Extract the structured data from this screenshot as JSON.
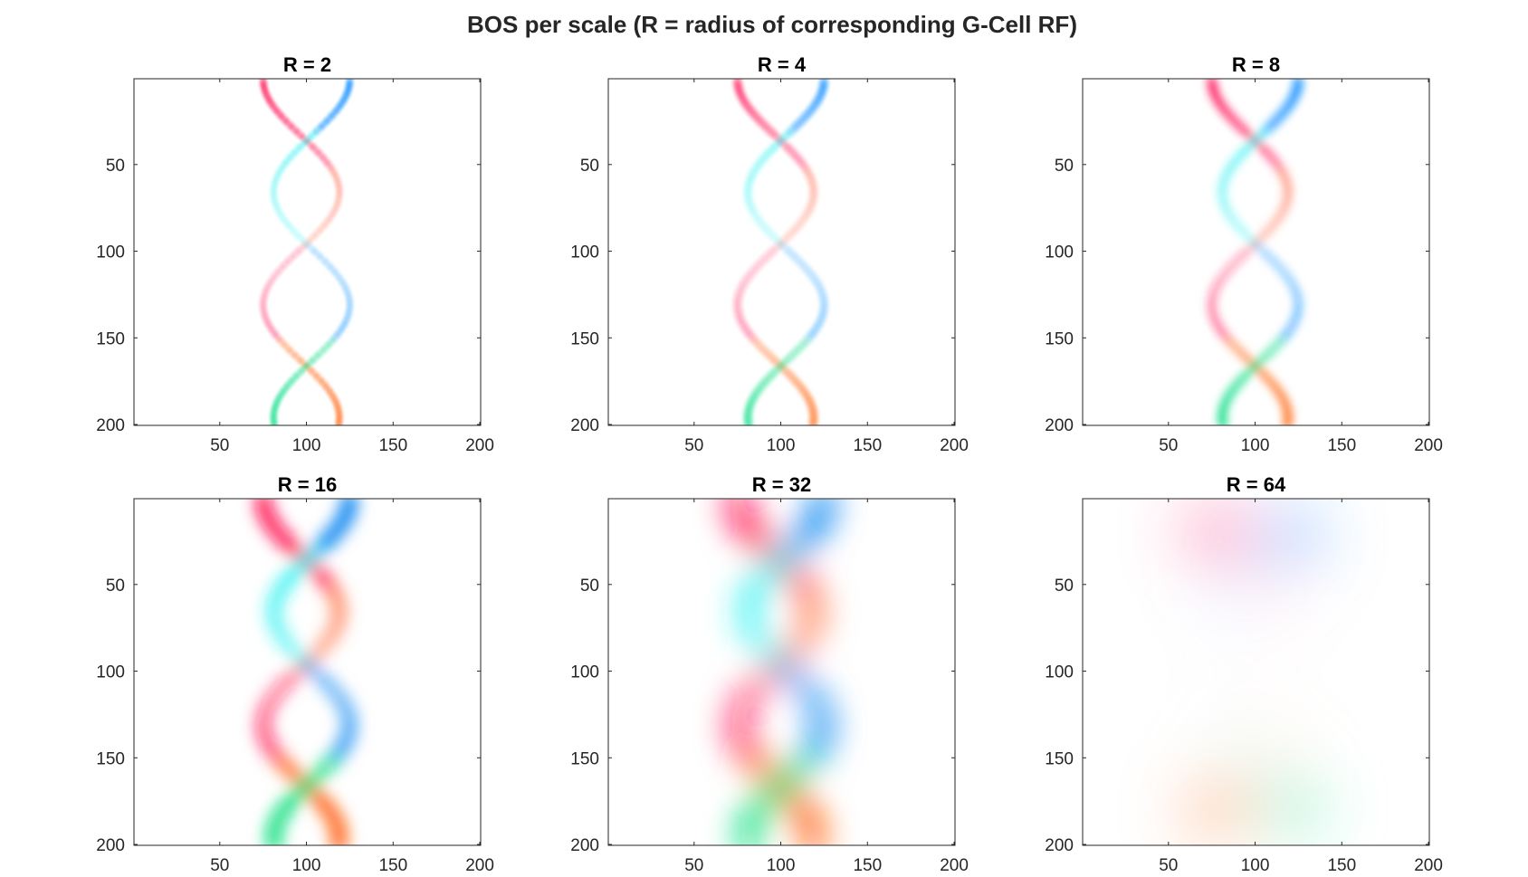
{
  "figure": {
    "title": "BOS per scale (R = radius of corresponding G-Cell RF)"
  },
  "chart_data": [
    {
      "type": "heatmap",
      "title": "R = 2",
      "radius": 2,
      "xlim": [
        1,
        200
      ],
      "ylim": [
        1,
        200
      ],
      "y_reversed": true,
      "xticks": [
        50,
        100,
        150,
        200
      ],
      "yticks": [
        50,
        100,
        150,
        200
      ],
      "peak_opacity": 0.55,
      "band_width": 4,
      "colors": {
        "left_top": "#ff2060",
        "left_bottom": "#ff7a30",
        "right_top": "#1090ff",
        "right_bottom": "#20e090",
        "right_mid": "#30f0f0",
        "left_mid": "#ff6040"
      }
    },
    {
      "type": "heatmap",
      "title": "R = 4",
      "radius": 4,
      "xlim": [
        1,
        200
      ],
      "ylim": [
        1,
        200
      ],
      "y_reversed": true,
      "xticks": [
        50,
        100,
        150,
        200
      ],
      "yticks": [
        50,
        100,
        150,
        200
      ],
      "peak_opacity": 0.45,
      "band_width": 5,
      "colors": {
        "left_top": "#ff2060",
        "left_bottom": "#ff7a30",
        "right_top": "#1090ff",
        "right_bottom": "#20e090",
        "right_mid": "#30f0f0",
        "left_mid": "#ff6040"
      }
    },
    {
      "type": "heatmap",
      "title": "R = 8",
      "radius": 8,
      "xlim": [
        1,
        200
      ],
      "ylim": [
        1,
        200
      ],
      "y_reversed": true,
      "xticks": [
        50,
        100,
        150,
        200
      ],
      "yticks": [
        50,
        100,
        150,
        200
      ],
      "peak_opacity": 0.6,
      "band_width": 6,
      "colors": {
        "left_top": "#ff2060",
        "left_bottom": "#ff7a30",
        "right_top": "#1090ff",
        "right_bottom": "#20e090",
        "right_mid": "#30f0f0",
        "left_mid": "#ff6040"
      }
    },
    {
      "type": "heatmap",
      "title": "R = 16",
      "radius": 16,
      "xlim": [
        1,
        200
      ],
      "ylim": [
        1,
        200
      ],
      "y_reversed": true,
      "xticks": [
        50,
        100,
        150,
        200
      ],
      "yticks": [
        50,
        100,
        150,
        200
      ],
      "peak_opacity": 0.9,
      "band_width": 9,
      "colors": {
        "left_top": "#ff1050",
        "left_bottom": "#ff6010",
        "right_top": "#0080f0",
        "right_bottom": "#10e080",
        "right_mid": "#20f0f0",
        "left_mid": "#ff7040"
      }
    },
    {
      "type": "heatmap",
      "title": "R = 32",
      "radius": 32,
      "xlim": [
        1,
        200
      ],
      "ylim": [
        1,
        200
      ],
      "y_reversed": true,
      "xticks": [
        50,
        100,
        150,
        200
      ],
      "yticks": [
        50,
        100,
        150,
        200
      ],
      "peak_opacity": 0.95,
      "band_width": 13,
      "colors": {
        "left_top": "#ff1050",
        "left_bottom": "#ff6010",
        "right_top": "#0080f0",
        "right_bottom": "#10e080",
        "right_mid": "#20f0f0",
        "left_mid": "#ff7040"
      }
    },
    {
      "type": "heatmap",
      "title": "R = 64",
      "radius": 64,
      "xlim": [
        1,
        200
      ],
      "ylim": [
        1,
        200
      ],
      "y_reversed": true,
      "xticks": [
        50,
        100,
        150,
        200
      ],
      "yticks": [
        50,
        100,
        150,
        200
      ],
      "peak_opacity": 0.35,
      "blobs": [
        {
          "x": 78,
          "y": 20,
          "rx": 20,
          "ry": 18,
          "color": "#ff4080",
          "opacity": 0.45
        },
        {
          "x": 120,
          "y": 22,
          "rx": 20,
          "ry": 18,
          "color": "#3090ff",
          "opacity": 0.4
        },
        {
          "x": 85,
          "y": 55,
          "rx": 16,
          "ry": 18,
          "color": "#70a8ff",
          "opacity": 0.12
        },
        {
          "x": 112,
          "y": 55,
          "rx": 14,
          "ry": 16,
          "color": "#ff80a8",
          "opacity": 0.12
        },
        {
          "x": 90,
          "y": 100,
          "rx": 10,
          "ry": 12,
          "color": "#ff90b0",
          "opacity": 0.06
        },
        {
          "x": 88,
          "y": 145,
          "rx": 16,
          "ry": 16,
          "color": "#60e0b0",
          "opacity": 0.12
        },
        {
          "x": 112,
          "y": 145,
          "rx": 14,
          "ry": 16,
          "color": "#ffb080",
          "opacity": 0.12
        },
        {
          "x": 78,
          "y": 180,
          "rx": 20,
          "ry": 18,
          "color": "#ff9050",
          "opacity": 0.45
        },
        {
          "x": 120,
          "y": 178,
          "rx": 20,
          "ry": 18,
          "color": "#30e0a0",
          "opacity": 0.4
        }
      ]
    }
  ]
}
